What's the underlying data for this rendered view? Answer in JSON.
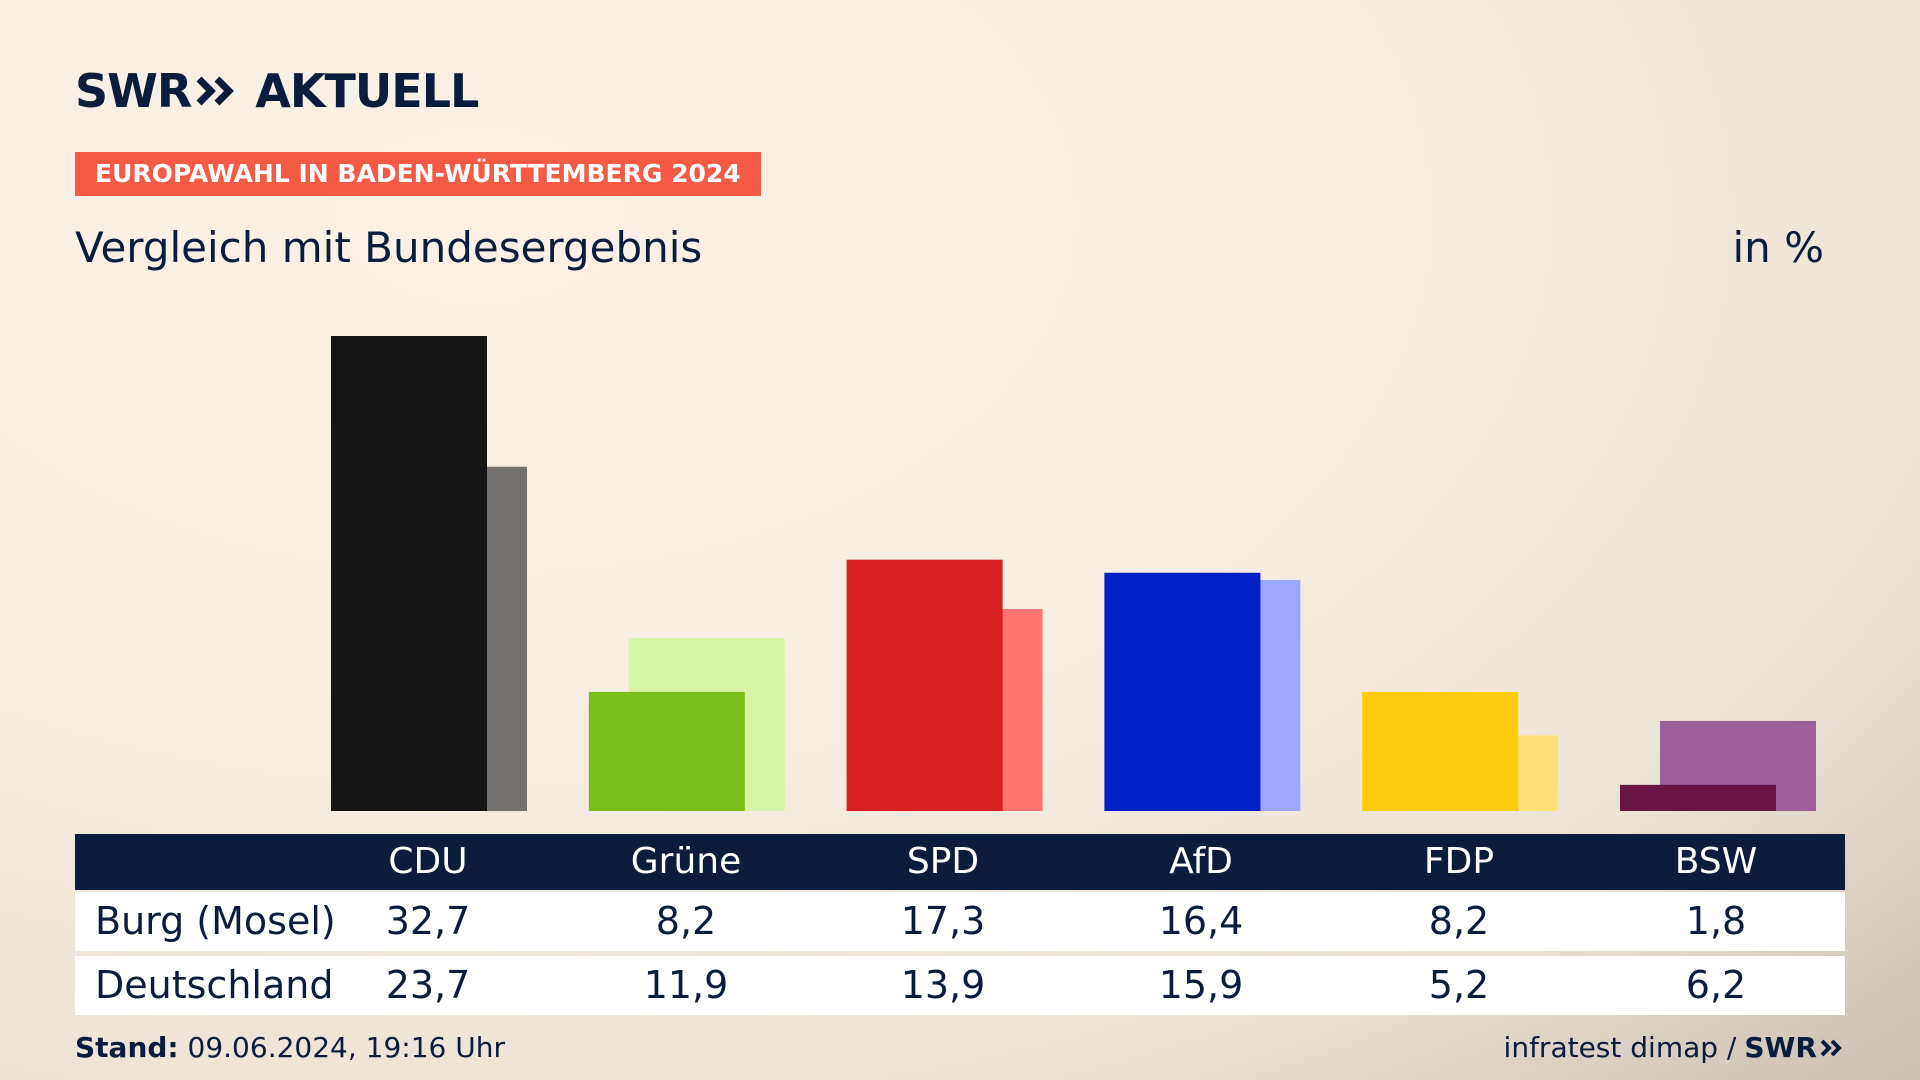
{
  "header": {
    "logo_swr": "SWR",
    "logo_aktuell": "AKTUELL",
    "badge": "EUROPAWAHL IN BADEN-WÜRTTEMBERG 2024",
    "subtitle": "Vergleich mit Bundesergebnis",
    "unit": "in %"
  },
  "chart_data": {
    "type": "bar",
    "categories": [
      "CDU",
      "Grüne",
      "SPD",
      "AfD",
      "FDP",
      "BSW"
    ],
    "series": [
      {
        "name": "Burg (Mosel)",
        "values": [
          32.7,
          8.2,
          17.3,
          16.4,
          8.2,
          1.8
        ],
        "colors": [
          "#151515",
          "#7abf1c",
          "#d62020",
          "#0021c8",
          "#ffcc0d",
          "#6b1642"
        ]
      },
      {
        "name": "Deutschland",
        "values": [
          23.7,
          11.9,
          13.9,
          15.9,
          5.2,
          6.2
        ],
        "colors": [
          "#727170",
          "#d7f5a8",
          "#ff7370",
          "#9ea7ff",
          "#ffe277",
          "#9a5e99"
        ]
      }
    ],
    "value_labels": [
      [
        "32,7",
        "8,2",
        "17,3",
        "16,4",
        "8,2",
        "1,8"
      ],
      [
        "23,7",
        "11,9",
        "13,9",
        "15,9",
        "5,2",
        "6,2"
      ]
    ],
    "ylim": [
      0,
      32.7
    ]
  },
  "footer": {
    "stand_label": "Stand:",
    "stand_value": "09.06.2024, 19:16 Uhr",
    "source": "infratest dimap /",
    "source_logo": "SWR"
  }
}
